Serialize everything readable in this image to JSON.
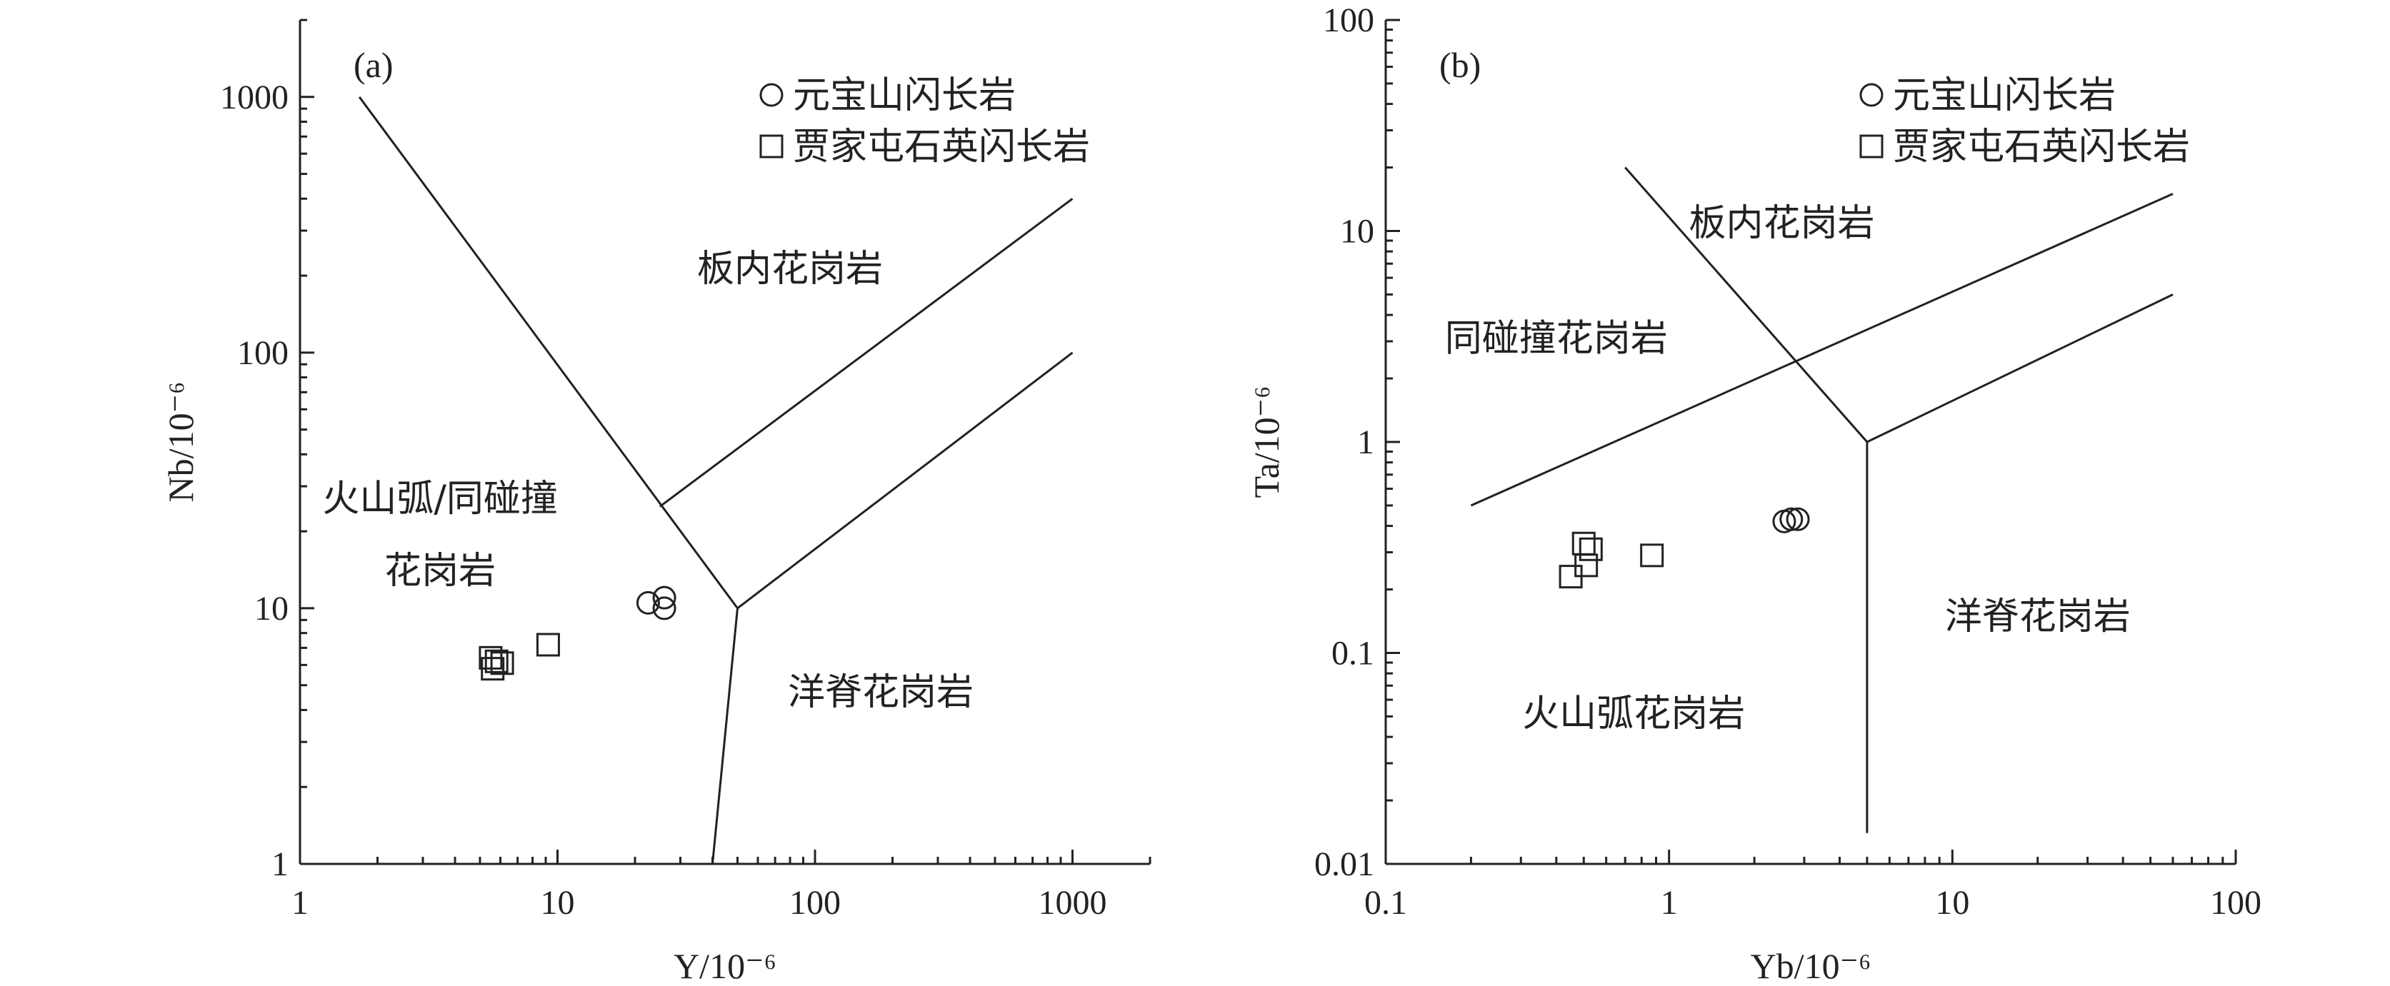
{
  "chart_data": [
    {
      "type": "scatter",
      "panel_label": "(a)",
      "xlabel": "Y/10⁻⁶",
      "ylabel": "Nb/10⁻⁶",
      "xscale": "log",
      "yscale": "log",
      "xlim": [
        1,
        2000
      ],
      "ylim": [
        1,
        2000
      ],
      "x_ticks": [
        {
          "value": 1,
          "label": "1"
        },
        {
          "value": 10,
          "label": "10"
        },
        {
          "value": 100,
          "label": "100"
        },
        {
          "value": 1000,
          "label": "1000"
        }
      ],
      "y_ticks": [
        {
          "value": 1,
          "label": "1"
        },
        {
          "value": 10,
          "label": "10"
        },
        {
          "value": 100,
          "label": "100"
        },
        {
          "value": 1000,
          "label": "1000"
        }
      ],
      "boundaries": [
        [
          [
            1.7,
            1000
          ],
          [
            50,
            10
          ],
          [
            40,
            1
          ]
        ],
        [
          [
            25,
            25
          ],
          [
            1000,
            400
          ]
        ],
        [
          [
            50,
            10
          ],
          [
            1000,
            100
          ]
        ]
      ],
      "regions": [
        {
          "label": "板内花岗岩",
          "x": 80,
          "y": 190
        },
        {
          "label": "火山弧/同碰撞",
          "x": 3.5,
          "y": 24
        },
        {
          "label": "花岗岩",
          "x": 3.5,
          "y": 12.5
        },
        {
          "label": "洋脊花岗岩",
          "x": 180,
          "y": 4.2
        }
      ],
      "legend_position": "top-right",
      "series": [
        {
          "name": "元宝山闪长岩",
          "marker": "circle",
          "points": [
            [
              22.5,
              10.5
            ],
            [
              26,
              11
            ],
            [
              26,
              10
            ]
          ]
        },
        {
          "name": "贾家屯石英闪长岩",
          "marker": "square",
          "points": [
            [
              5.5,
              6.4
            ],
            [
              5.6,
              5.8
            ],
            [
              5.8,
              6.2
            ],
            [
              6.1,
              6.1
            ],
            [
              9.2,
              7.2
            ]
          ]
        }
      ]
    },
    {
      "type": "scatter",
      "panel_label": "(b)",
      "xlabel": "Yb/10⁻⁶",
      "ylabel": "Ta/10⁻⁶",
      "xscale": "log",
      "yscale": "log",
      "xlim": [
        0.1,
        100
      ],
      "ylim": [
        0.01,
        100
      ],
      "x_ticks": [
        {
          "value": 0.1,
          "label": "0.1"
        },
        {
          "value": 1,
          "label": "1"
        },
        {
          "value": 10,
          "label": "10"
        },
        {
          "value": 100,
          "label": "100"
        }
      ],
      "y_ticks": [
        {
          "value": 0.01,
          "label": "0.01"
        },
        {
          "value": 0.1,
          "label": "0.1"
        },
        {
          "value": 1,
          "label": "1"
        },
        {
          "value": 10,
          "label": "10"
        },
        {
          "value": 100,
          "label": "100"
        }
      ],
      "boundaries": [
        [
          [
            0.7,
            20
          ],
          [
            5,
            1
          ],
          [
            5,
            0.014
          ]
        ],
        [
          [
            0.2,
            0.5
          ],
          [
            60,
            15
          ]
        ],
        [
          [
            5,
            1
          ],
          [
            60,
            5
          ]
        ]
      ],
      "regions": [
        {
          "label": "板内花岗岩",
          "x": 2.5,
          "y": 9.5
        },
        {
          "label": "同碰撞花岗岩",
          "x": 0.4,
          "y": 2.7
        },
        {
          "label": "洋脊花岗岩",
          "x": 20,
          "y": 0.13
        },
        {
          "label": "火山弧花岗岩",
          "x": 0.75,
          "y": 0.045
        }
      ],
      "legend_position": "top-right",
      "series": [
        {
          "name": "元宝山闪长岩",
          "marker": "circle",
          "points": [
            [
              2.55,
              0.42
            ],
            [
              2.7,
              0.43
            ],
            [
              2.85,
              0.43
            ]
          ]
        },
        {
          "name": "贾家屯石英闪长岩",
          "marker": "square",
          "points": [
            [
              0.5,
              0.33
            ],
            [
              0.53,
              0.31
            ],
            [
              0.51,
              0.26
            ],
            [
              0.45,
              0.23
            ],
            [
              0.87,
              0.29
            ]
          ]
        }
      ]
    }
  ]
}
